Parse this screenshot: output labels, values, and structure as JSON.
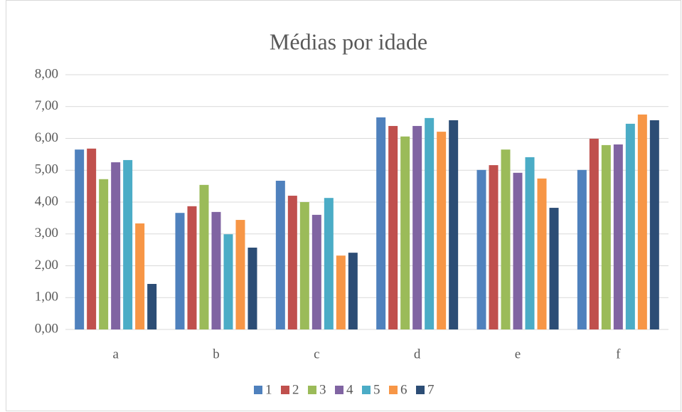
{
  "chart_data": {
    "type": "bar",
    "title": "Médias por idade",
    "categories": [
      "a",
      "b",
      "c",
      "d",
      "e",
      "f"
    ],
    "series": [
      {
        "name": "1",
        "color": "#4f81bd",
        "values": [
          5.65,
          3.66,
          4.67,
          6.66,
          5.01,
          5.01
        ]
      },
      {
        "name": "2",
        "color": "#c0504d",
        "values": [
          5.68,
          3.87,
          4.2,
          6.39,
          5.16,
          5.99
        ]
      },
      {
        "name": "3",
        "color": "#9bbb59",
        "values": [
          4.72,
          4.54,
          4.0,
          6.06,
          5.65,
          5.79
        ]
      },
      {
        "name": "4",
        "color": "#8064a2",
        "values": [
          5.25,
          3.69,
          3.6,
          6.39,
          4.92,
          5.81
        ]
      },
      {
        "name": "5",
        "color": "#4bacc6",
        "values": [
          5.32,
          2.99,
          4.13,
          6.64,
          5.41,
          6.46
        ]
      },
      {
        "name": "6",
        "color": "#f79646",
        "values": [
          3.33,
          3.44,
          2.32,
          6.21,
          4.74,
          6.75
        ]
      },
      {
        "name": "7",
        "color": "#2c4d75",
        "values": [
          1.43,
          2.57,
          2.41,
          6.57,
          3.82,
          6.57
        ]
      }
    ],
    "ylim": [
      0,
      8
    ],
    "yticks": [
      {
        "value": 0,
        "label": "0,00"
      },
      {
        "value": 1,
        "label": "1,00"
      },
      {
        "value": 2,
        "label": "2,00"
      },
      {
        "value": 3,
        "label": "3,00"
      },
      {
        "value": 4,
        "label": "4,00"
      },
      {
        "value": 5,
        "label": "5,00"
      },
      {
        "value": 6,
        "label": "6,00"
      },
      {
        "value": 7,
        "label": "7,00"
      },
      {
        "value": 8,
        "label": "8,00"
      }
    ],
    "grid": true,
    "legend": "bottom"
  }
}
